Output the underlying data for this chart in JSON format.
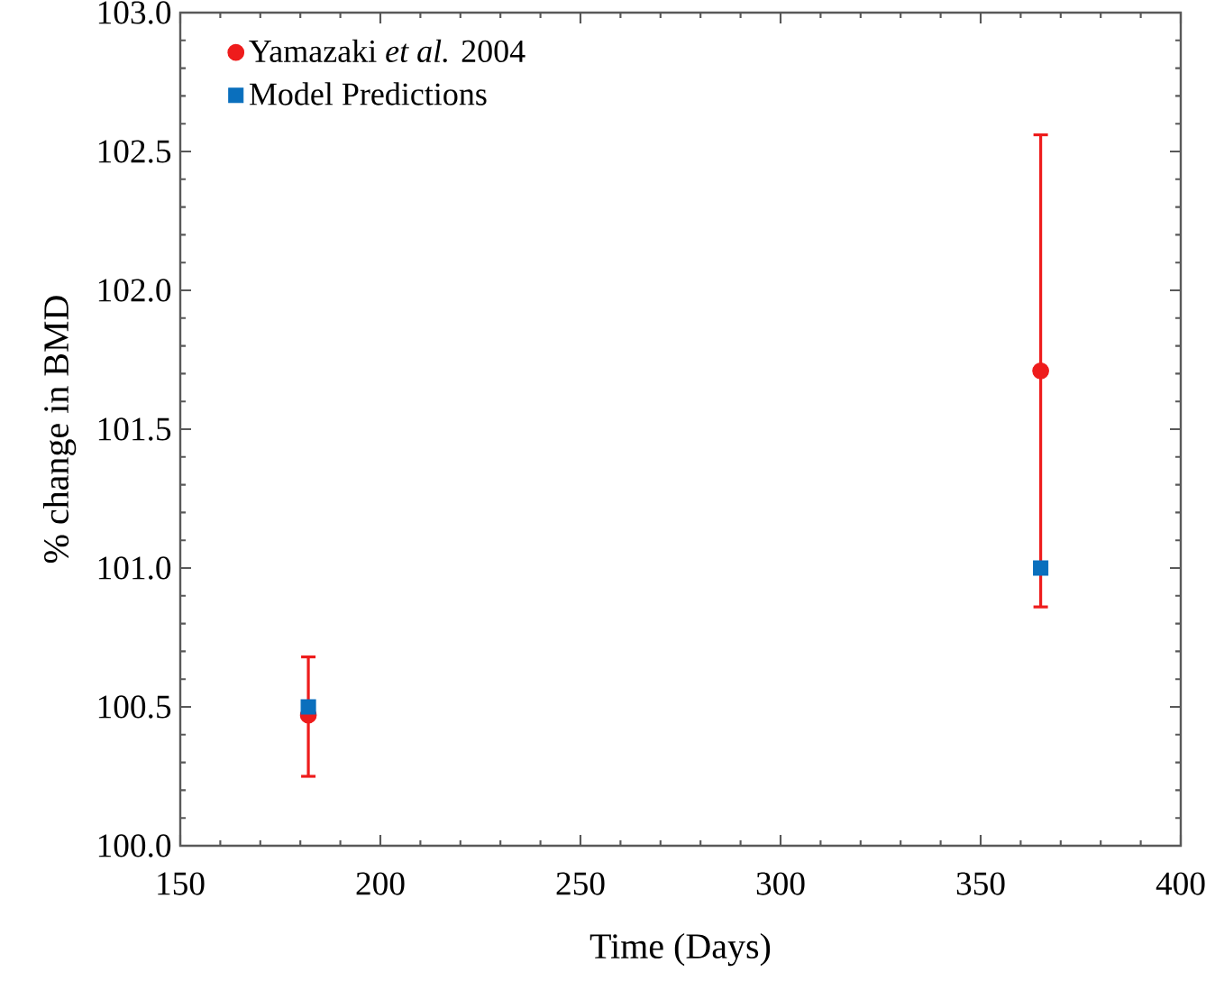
{
  "chart_data": {
    "type": "scatter",
    "xlabel": "Time (Days)",
    "ylabel": "% change in BMD",
    "xlim": [
      150,
      400
    ],
    "xticks": [
      150,
      200,
      250,
      300,
      350,
      400
    ],
    "ylim": [
      100,
      103
    ],
    "yticks": [
      {
        "value": 100,
        "label": "100.0"
      },
      100.5,
      {
        "value": 101,
        "label": "101.0"
      },
      101.5,
      {
        "value": 102,
        "label": "102.0"
      },
      102.5,
      {
        "value": 103,
        "label": "103.0"
      }
    ],
    "legend": "top left",
    "grid": false,
    "x": [
      182,
      365
    ],
    "series": [
      {
        "name": "Yamazaki *et al.* 2004",
        "color": "#ee1c1c",
        "marker": "circle",
        "values": [
          100.47,
          101.71
        ],
        "errors": [
          [
            100.25,
            100.68
          ],
          [
            100.86,
            102.56
          ]
        ]
      },
      {
        "name": "Model Predictions",
        "color": "#0a6fbd",
        "marker": "square",
        "values": [
          100.5,
          101.0
        ]
      }
    ]
  }
}
